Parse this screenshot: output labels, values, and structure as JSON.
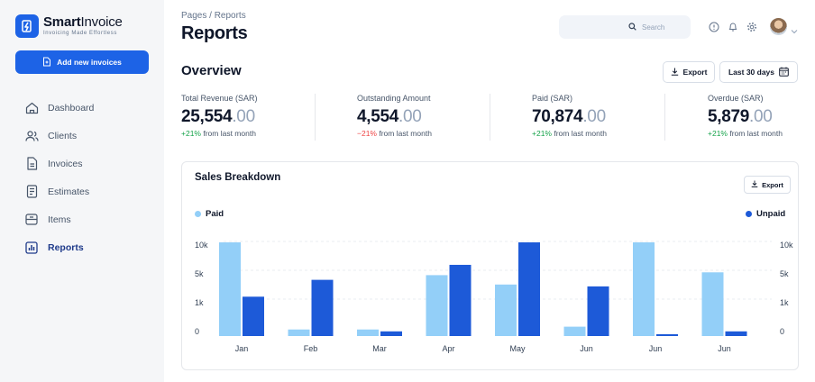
{
  "brand": {
    "name_bold": "Smart",
    "name_light": "Invoice",
    "tagline": "Invoicing Made Effortless",
    "accent": "#1d63e6"
  },
  "sidebar": {
    "add_button": "Add new invoices",
    "items": [
      {
        "label": "Dashboard",
        "icon": "home-icon",
        "active": false
      },
      {
        "label": "Clients",
        "icon": "users-icon",
        "active": false
      },
      {
        "label": "Invoices",
        "icon": "document-icon",
        "active": false
      },
      {
        "label": "Estimates",
        "icon": "estimate-icon",
        "active": false
      },
      {
        "label": "Items",
        "icon": "box-icon",
        "active": false
      },
      {
        "label": "Reports",
        "icon": "bar-chart-icon",
        "active": true
      }
    ]
  },
  "header": {
    "breadcrumb": "Pages / Reports",
    "title": "Reports",
    "search_placeholder": "Search"
  },
  "overview": {
    "title": "Overview",
    "export_label": "Export",
    "range_label": "Last 30 days",
    "stats": [
      {
        "label": "Total Revenue (SAR)",
        "value": "25,554",
        "decimals": ".00",
        "change": "+21%",
        "change_suffix": "from last month",
        "trend": "up"
      },
      {
        "label": "Outstanding Amount",
        "value": "4,554",
        "decimals": ".00",
        "change": "−21%",
        "change_suffix": "from last month",
        "trend": "down"
      },
      {
        "label": "Paid (SAR)",
        "value": "70,874",
        "decimals": ".00",
        "change": "+21%",
        "change_suffix": "from last month",
        "trend": "up"
      },
      {
        "label": "Overdue (SAR)",
        "value": "5,879",
        "decimals": ".00",
        "change": "+21%",
        "change_suffix": "from last month",
        "trend": "up"
      }
    ]
  },
  "sales": {
    "title": "Sales Breakdown",
    "export_label": "Export"
  },
  "chart_data": {
    "type": "bar",
    "categories": [
      "Jan",
      "Feb",
      "Mar",
      "Apr",
      "May",
      "Jun",
      "Jun",
      "Jun"
    ],
    "y_ticks": [
      "10k",
      "5k",
      "1k",
      "0"
    ],
    "series": [
      {
        "name": "Paid",
        "color": "#93cff8",
        "values": [
          10,
          0.7,
          0.7,
          6.5,
          5.5,
          1.0,
          10,
          6.8
        ]
      },
      {
        "name": "Unpaid",
        "color": "#1d5ad8",
        "values": [
          4.2,
          6.0,
          0.5,
          7.6,
          10,
          5.3,
          0.2,
          0.5
        ]
      }
    ],
    "legend_position": "top",
    "grid": true
  }
}
